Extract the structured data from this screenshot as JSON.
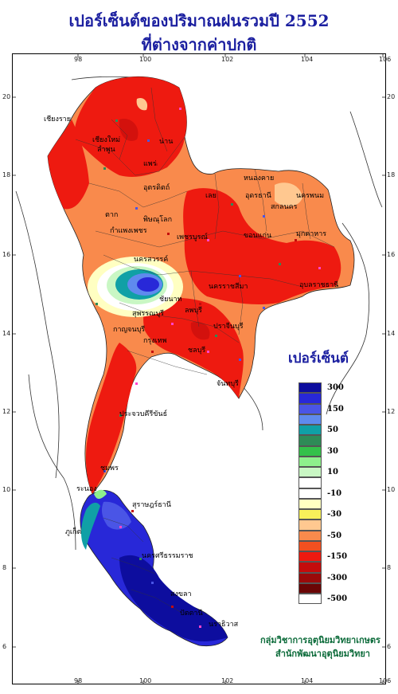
{
  "title": {
    "line1": "เปอร์เซ็นต์ของปริมาณฝนรวมปี 2552",
    "line2": "ที่ต่างจากค่าปกติ"
  },
  "axes": {
    "lon_ticks": [
      "98",
      "100",
      "102",
      "104",
      "106"
    ],
    "lat_ticks": [
      "20",
      "18",
      "16",
      "14",
      "12",
      "10",
      "8",
      "6"
    ]
  },
  "legend": {
    "title": "เปอร์เซ็นต์",
    "items": [
      {
        "color": "#0d0d9e",
        "label": "300"
      },
      {
        "color": "#2828d8",
        "label": ""
      },
      {
        "color": "#4a55e6",
        "label": "150"
      },
      {
        "color": "#5f8aee",
        "label": ""
      },
      {
        "color": "#10a0a6",
        "label": "50"
      },
      {
        "color": "#2e8b57",
        "label": ""
      },
      {
        "color": "#33c14a",
        "label": "30"
      },
      {
        "color": "#8ef08c",
        "label": ""
      },
      {
        "color": "#c9f7c4",
        "label": "10"
      },
      {
        "color": "#ffffff",
        "label": ""
      },
      {
        "color": "#ffffff",
        "label": "-10"
      },
      {
        "color": "#ffffc2",
        "label": ""
      },
      {
        "color": "#f7f05a",
        "label": "-30"
      },
      {
        "color": "#ffc890",
        "label": ""
      },
      {
        "color": "#f98a4c",
        "label": "-50"
      },
      {
        "color": "#f25020",
        "label": ""
      },
      {
        "color": "#ee1a10",
        "label": "-150"
      },
      {
        "color": "#c40c0c",
        "label": ""
      },
      {
        "color": "#9a0a0a",
        "label": "-300"
      },
      {
        "color": "#6a0505",
        "label": ""
      },
      {
        "color": "#ffffff",
        "label": "-500"
      }
    ]
  },
  "places": [
    "เชียงราย",
    "เชียงใหม่",
    "ลำพูน",
    "น่าน",
    "แพร่",
    "อุตรดิตถ์",
    "ตาก",
    "พิษณุโลก",
    "กำแพงเพชร",
    "เพชรบูรณ์",
    "หนองคาย",
    "อุดรธานี",
    "สกลนคร",
    "นครพนม",
    "เลย",
    "ขอนแก่น",
    "มุกดาหาร",
    "นครสวรรค์",
    "ชัยนาท",
    "ลพบุรี",
    "สุพรรณบุรี",
    "นครราชสีมา",
    "อุบลราชธานี",
    "กาญจนบุรี",
    "ปราจีนบุรี",
    "กรุงเทพ",
    "ชลบุรี",
    "จันทบุรี",
    "ประจวบคีรีขันธ์",
    "ชุมพร",
    "ระนอง",
    "สุราษฎร์ธานี",
    "นครศรีธรรมราช",
    "ภูเก็ต",
    "สงขลา",
    "ปัตตานี",
    "นราธิวาส",
    "เชียงราย"
  ],
  "credits": {
    "line1": "กลุ่มวิชาการอุตุนิยมวิทยาเกษตร",
    "line2": "สำนักพัฒนาอุตุนิยมวิทยา"
  }
}
